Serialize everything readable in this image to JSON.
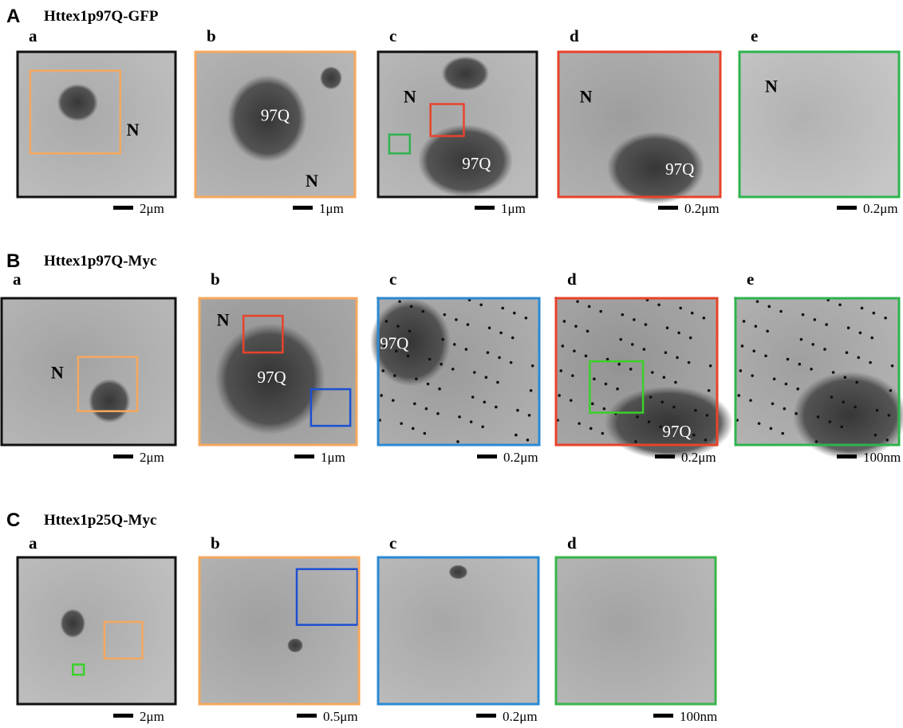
{
  "rows": [
    {
      "label": "A",
      "title": "Httex1p97Q-GFP",
      "panels": [
        {
          "label": "a",
          "annotations": [
            "N"
          ],
          "scale": "2μm"
        },
        {
          "label": "b",
          "annotations": [
            "97Q",
            "N"
          ],
          "scale": "1μm"
        },
        {
          "label": "c",
          "annotations": [
            "N",
            "97Q"
          ],
          "scale": "1μm"
        },
        {
          "label": "d",
          "annotations": [
            "N",
            "97Q"
          ],
          "scale": "0.2μm"
        },
        {
          "label": "e",
          "annotations": [
            "N"
          ],
          "scale": "0.2μm"
        }
      ]
    },
    {
      "label": "B",
      "title": "Httex1p97Q-Myc",
      "panels": [
        {
          "label": "a",
          "annotations": [
            "N"
          ],
          "scale": "2μm"
        },
        {
          "label": "b",
          "annotations": [
            "N",
            "97Q"
          ],
          "scale": "1μm"
        },
        {
          "label": "c",
          "annotations": [
            "97Q"
          ],
          "scale": "0.2μm"
        },
        {
          "label": "d",
          "annotations": [
            "97Q"
          ],
          "scale": "0.2μm"
        },
        {
          "label": "e",
          "annotations": [],
          "scale": "100nm"
        }
      ]
    },
    {
      "label": "C",
      "title": "Httex1p25Q-Myc",
      "panels": [
        {
          "label": "a",
          "annotations": [],
          "scale": "2μm"
        },
        {
          "label": "b",
          "annotations": [],
          "scale": "0.5μm"
        },
        {
          "label": "c",
          "annotations": [],
          "scale": "0.2μm"
        },
        {
          "label": "d",
          "annotations": [],
          "scale": "100nm"
        }
      ]
    }
  ]
}
